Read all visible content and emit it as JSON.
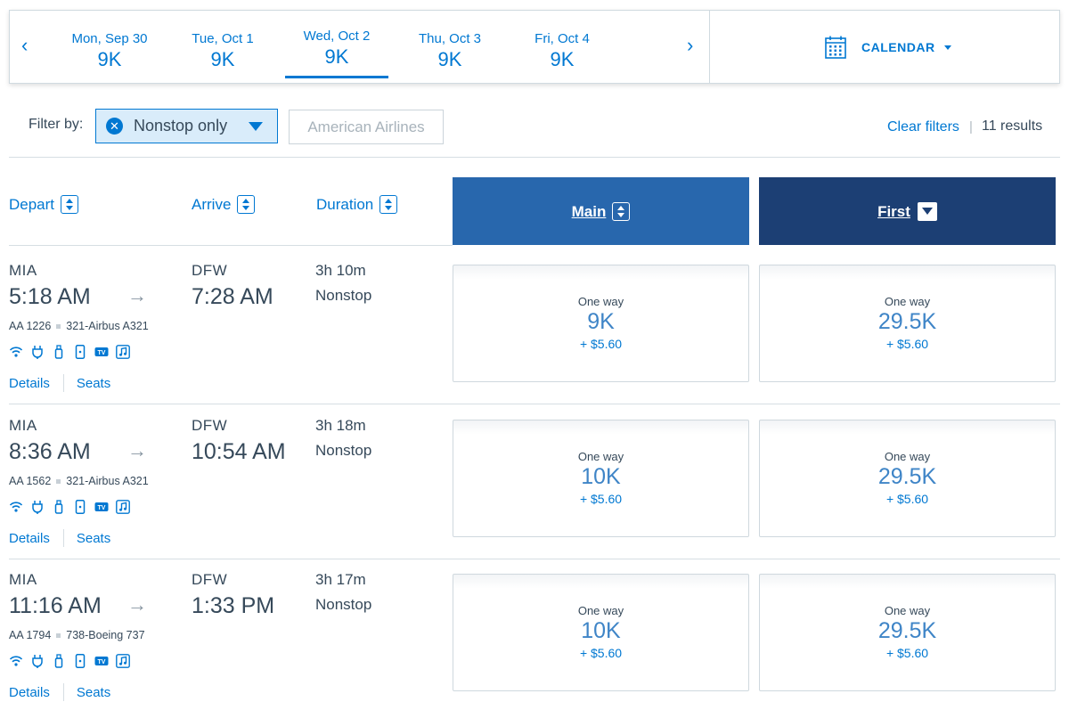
{
  "date_strip": {
    "prev_arrow": "‹",
    "next_arrow": "›",
    "days": [
      {
        "label": "Mon, Sep 30",
        "price": "9K"
      },
      {
        "label": "Tue, Oct 1",
        "price": "9K"
      },
      {
        "label": "Wed, Oct 2",
        "price": "9K",
        "active": true
      },
      {
        "label": "Thu, Oct 3",
        "price": "9K"
      },
      {
        "label": "Fri, Oct 4",
        "price": "9K"
      }
    ],
    "calendar_label": "CALENDAR"
  },
  "filters": {
    "label": "Filter by:",
    "active_chip": "Nonstop only",
    "airline_placeholder": "American Airlines",
    "clear_label": "Clear filters",
    "separator": "|",
    "results": "11 results"
  },
  "columns": {
    "depart": "Depart",
    "arrive": "Arrive",
    "duration": "Duration",
    "main": "Main",
    "first": "First"
  },
  "flights": [
    {
      "origin": "MIA",
      "depart": "5:18 AM",
      "dest": "DFW",
      "arrive": "7:28 AM",
      "duration": "3h 10m",
      "stops": "Nonstop",
      "flight": "AA 1226",
      "aircraft": "321-Airbus A321",
      "main": {
        "label": "One way",
        "miles": "9K",
        "tax": "+ $5.60"
      },
      "first": {
        "label": "One way",
        "miles": "29.5K",
        "tax": "+ $5.60"
      },
      "details": "Details",
      "seats": "Seats"
    },
    {
      "origin": "MIA",
      "depart": "8:36 AM",
      "dest": "DFW",
      "arrive": "10:54 AM",
      "duration": "3h 18m",
      "stops": "Nonstop",
      "flight": "AA 1562",
      "aircraft": "321-Airbus A321",
      "main": {
        "label": "One way",
        "miles": "10K",
        "tax": "+ $5.60"
      },
      "first": {
        "label": "One way",
        "miles": "29.5K",
        "tax": "+ $5.60"
      },
      "details": "Details",
      "seats": "Seats"
    },
    {
      "origin": "MIA",
      "depart": "11:16 AM",
      "dest": "DFW",
      "arrive": "1:33 PM",
      "duration": "3h 17m",
      "stops": "Nonstop",
      "flight": "AA 1794",
      "aircraft": "738-Boeing 737",
      "main": {
        "label": "One way",
        "miles": "10K",
        "tax": "+ $5.60"
      },
      "first": {
        "label": "One way",
        "miles": "29.5K",
        "tax": "+ $5.60"
      },
      "details": "Details",
      "seats": "Seats"
    }
  ],
  "amenity_icons": [
    "wifi-icon",
    "power-outlet-icon",
    "usb-icon",
    "device-icon",
    "tv-icon",
    "music-icon"
  ],
  "amenity_tv_text": "TV",
  "colors": {
    "accent": "#0078d2",
    "main_header": "#2867ad",
    "first_header": "#1c3f74",
    "text": "#36495a",
    "filter_bg": "#d9ecfa"
  }
}
